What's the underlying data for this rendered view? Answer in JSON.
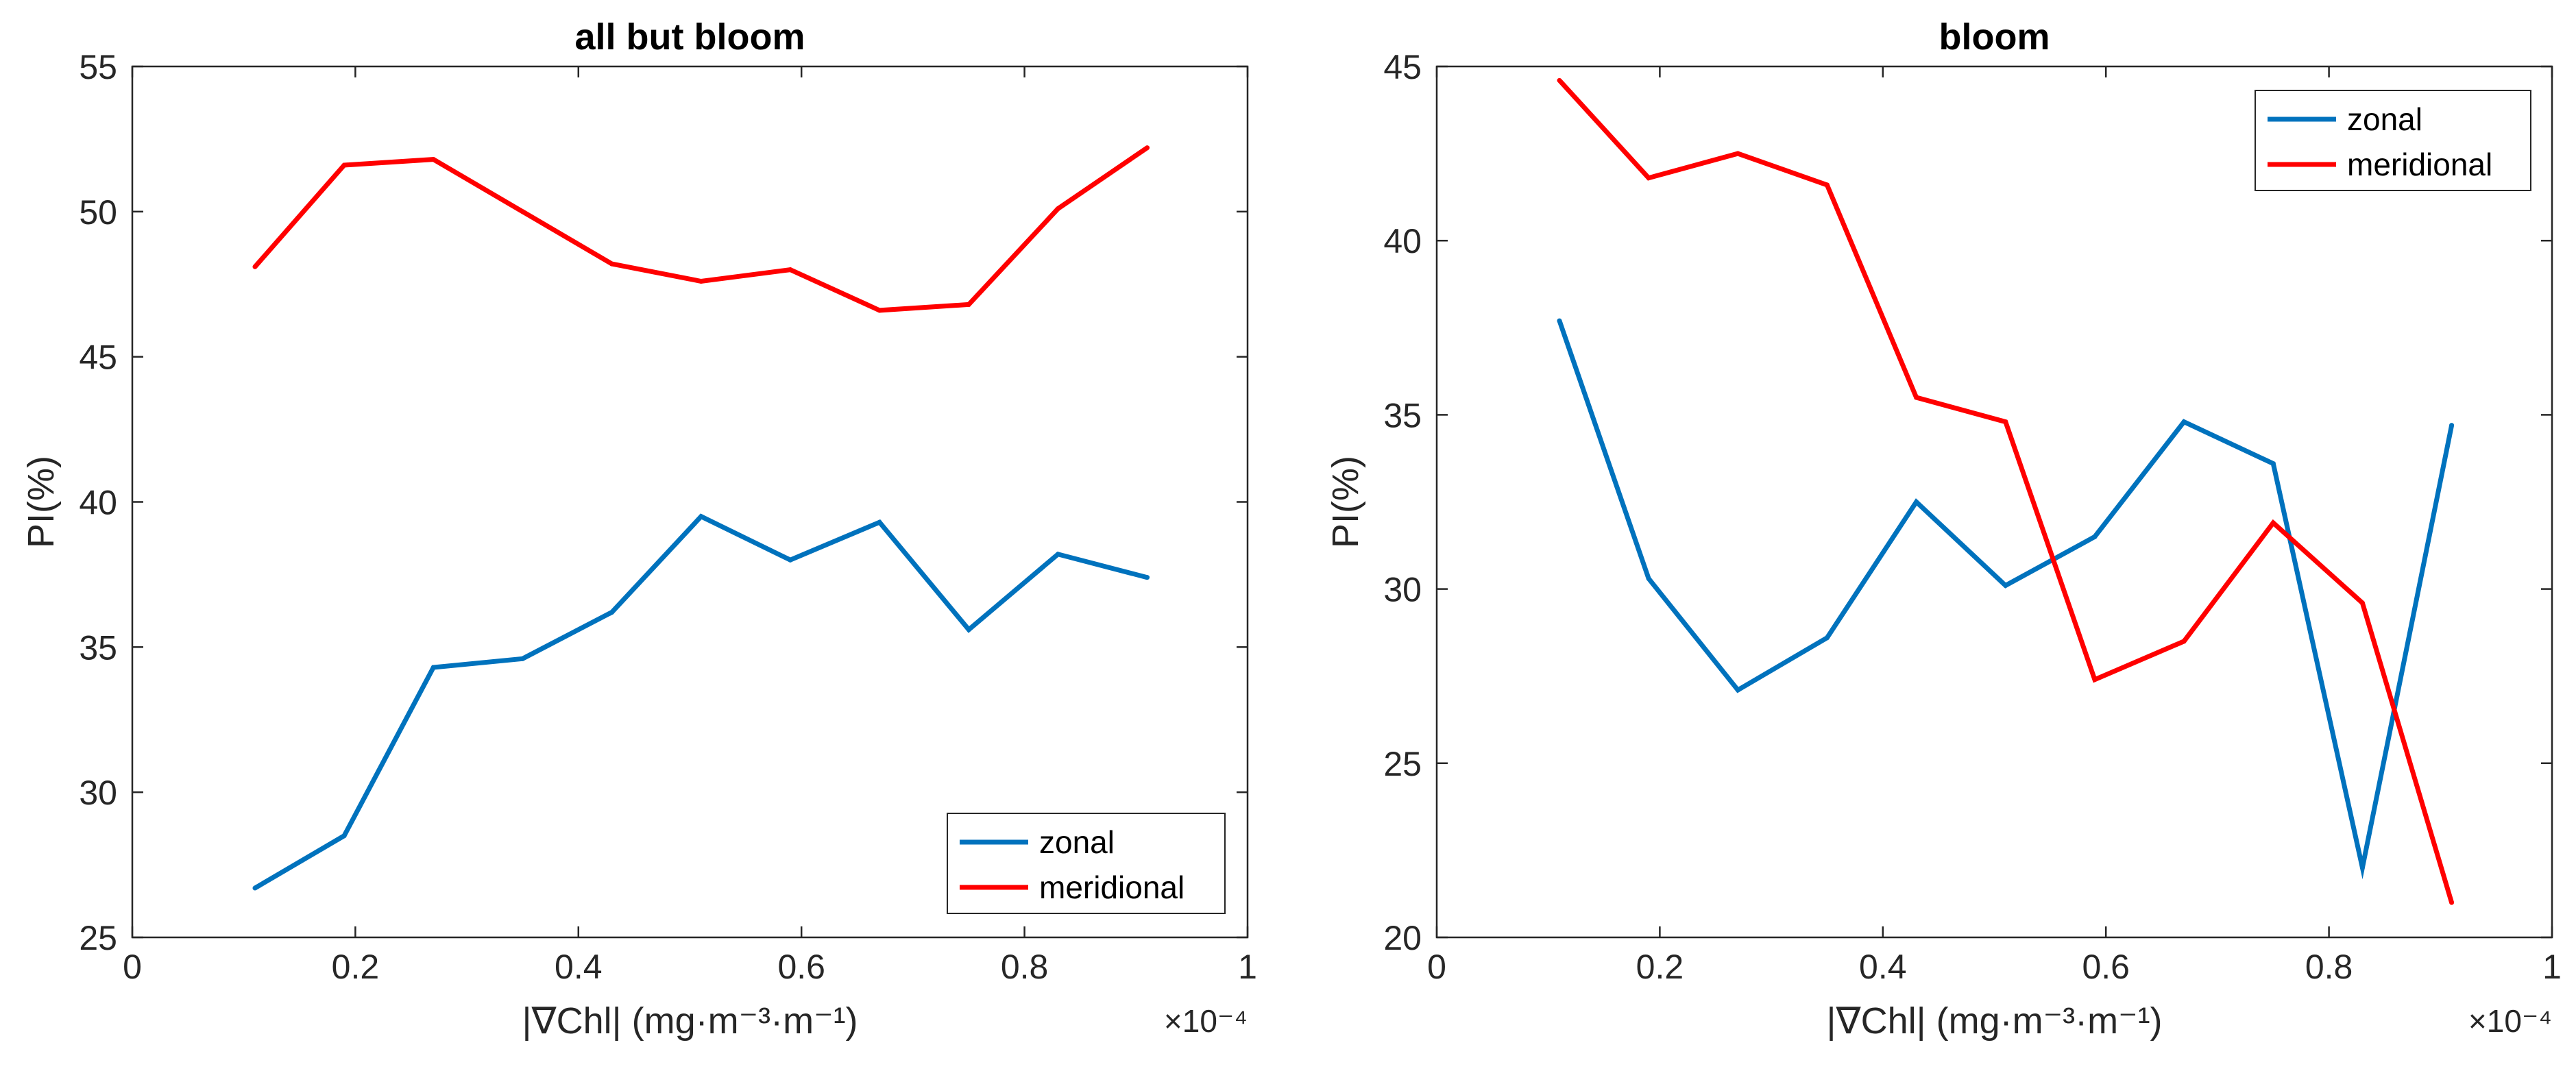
{
  "chart_data": [
    {
      "type": "line",
      "title": "all but bloom",
      "xlabel": "|∇Chl| (mg·m⁻³·m⁻¹)",
      "ylabel": "PI(%)",
      "x_multiplier": "×10⁻⁴",
      "xlim": [
        0,
        1
      ],
      "ylim": [
        25,
        55
      ],
      "xticks": [
        0,
        0.2,
        0.4,
        0.6,
        0.8,
        1
      ],
      "xtick_labels": [
        "0",
        "0.2",
        "0.4",
        "0.6",
        "0.8",
        "1"
      ],
      "yticks": [
        25,
        30,
        35,
        40,
        45,
        50,
        55
      ],
      "ytick_labels": [
        "25",
        "30",
        "35",
        "40",
        "45",
        "50",
        "55"
      ],
      "legend_position": "bottom-right",
      "x": [
        0.11,
        0.19,
        0.27,
        0.35,
        0.43,
        0.51,
        0.59,
        0.67,
        0.75,
        0.83,
        0.91
      ],
      "series": [
        {
          "name": "zonal",
          "color": "#0072BD",
          "values": [
            26.7,
            28.5,
            34.3,
            34.6,
            36.2,
            39.5,
            38.0,
            39.3,
            35.6,
            38.2,
            37.4
          ]
        },
        {
          "name": "meridional",
          "color": "#FF0000",
          "values": [
            48.1,
            51.6,
            51.8,
            50.0,
            48.2,
            47.6,
            48.0,
            46.6,
            46.8,
            50.1,
            52.2
          ]
        }
      ]
    },
    {
      "type": "line",
      "title": "bloom",
      "xlabel": "|∇Chl| (mg·m⁻³·m⁻¹)",
      "ylabel": "PI(%)",
      "x_multiplier": "×10⁻⁴",
      "xlim": [
        0,
        1
      ],
      "ylim": [
        20,
        45
      ],
      "xticks": [
        0,
        0.2,
        0.4,
        0.6,
        0.8,
        1
      ],
      "xtick_labels": [
        "0",
        "0.2",
        "0.4",
        "0.6",
        "0.8",
        "1"
      ],
      "yticks": [
        20,
        25,
        30,
        35,
        40,
        45
      ],
      "ytick_labels": [
        "20",
        "25",
        "30",
        "35",
        "40",
        "45"
      ],
      "legend_position": "top-right",
      "x": [
        0.11,
        0.19,
        0.27,
        0.35,
        0.43,
        0.51,
        0.59,
        0.67,
        0.75,
        0.83,
        0.91
      ],
      "series": [
        {
          "name": "zonal",
          "color": "#0072BD",
          "values": [
            37.7,
            30.3,
            27.1,
            28.6,
            32.5,
            30.1,
            31.5,
            34.8,
            33.6,
            22.0,
            34.7
          ]
        },
        {
          "name": "meridional",
          "color": "#FF0000",
          "values": [
            44.6,
            41.8,
            42.5,
            41.6,
            35.5,
            34.8,
            27.4,
            28.5,
            31.9,
            29.6,
            21.0
          ]
        }
      ]
    }
  ]
}
